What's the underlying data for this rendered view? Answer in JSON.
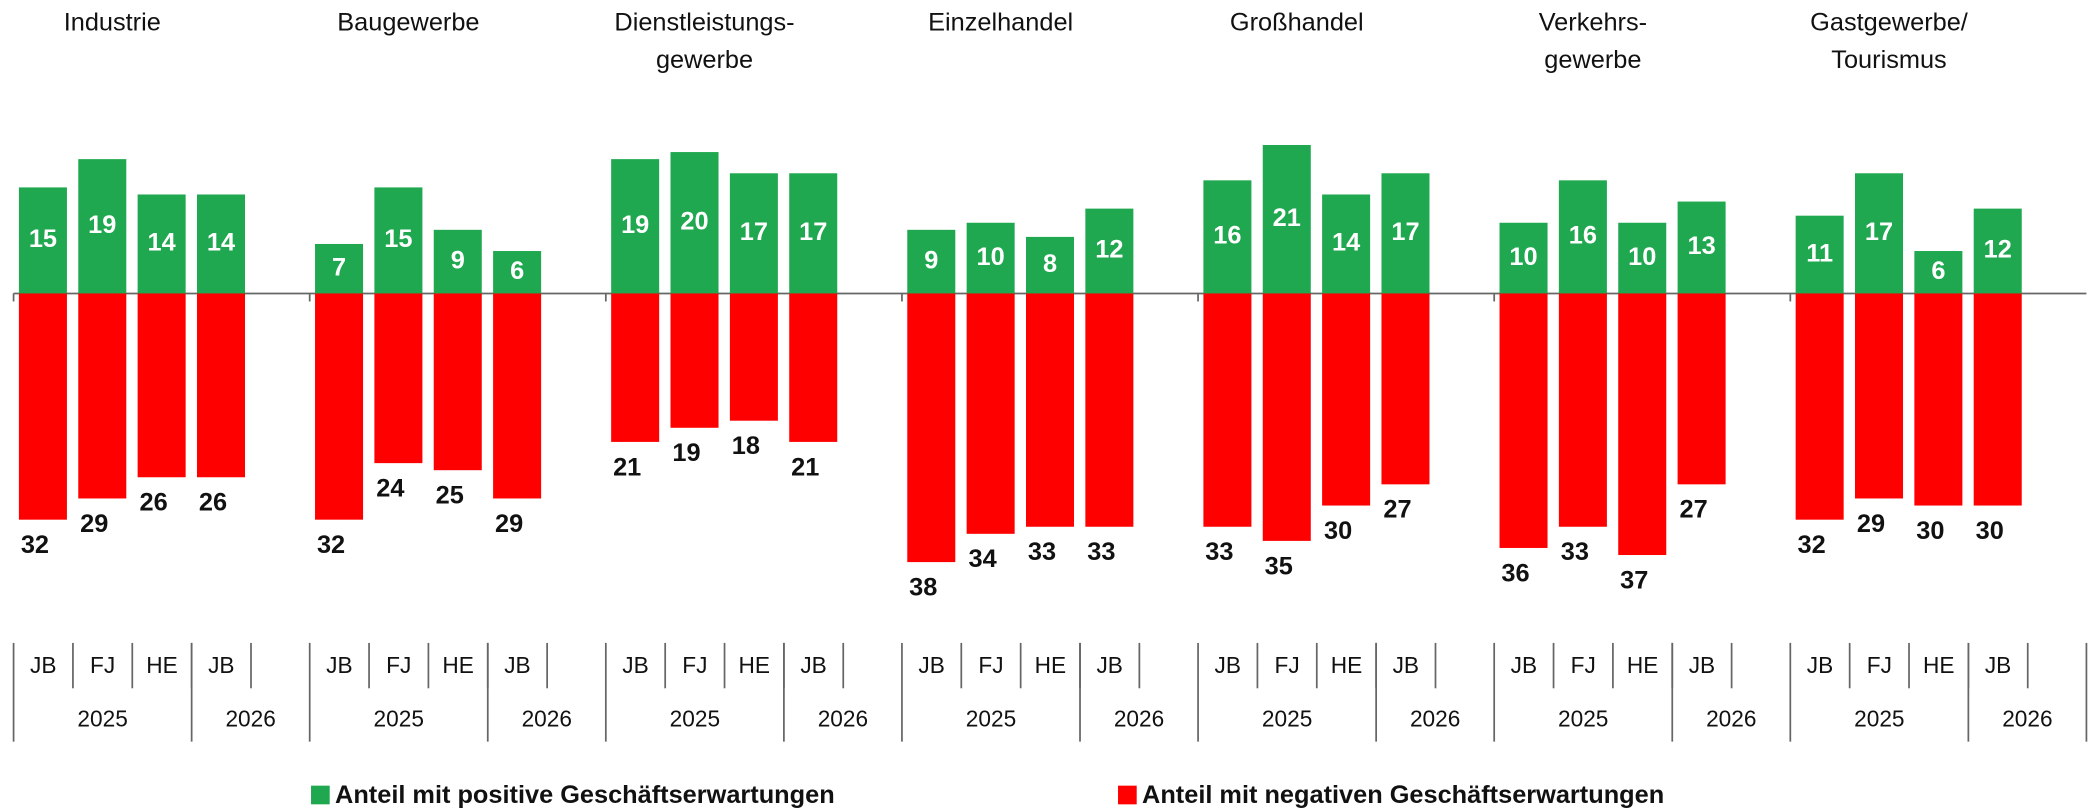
{
  "chart_data": {
    "type": "bar",
    "categories": [
      [
        "Industrie"
      ],
      [
        "Baugewerbe"
      ],
      [
        "Dienstleistungs-",
        "gewerbe"
      ],
      [
        "Einzelhandel"
      ],
      [
        "Großhandel"
      ],
      [
        "Verkehrs-",
        "gewerbe"
      ],
      [
        "Gastgewerbe/",
        "Tourismus"
      ]
    ],
    "period_groups": [
      {
        "year": "2025",
        "periods": [
          "JB",
          "FJ",
          "HE"
        ]
      },
      {
        "year": "2026",
        "periods": [
          "JB"
        ]
      }
    ],
    "series": [
      {
        "name": "Anteil mit positive Geschäftserwartungen",
        "color": "#1fa84f",
        "direction": "up",
        "values": [
          [
            15,
            19,
            14,
            14
          ],
          [
            7,
            15,
            9,
            6
          ],
          [
            19,
            20,
            17,
            17
          ],
          [
            9,
            10,
            8,
            12
          ],
          [
            16,
            21,
            14,
            17
          ],
          [
            10,
            16,
            10,
            13
          ],
          [
            11,
            17,
            6,
            12
          ]
        ]
      },
      {
        "name": "Anteil mit negativen Geschäftserwartungen",
        "color": "#ff0000",
        "direction": "down",
        "values": [
          [
            32,
            29,
            26,
            26
          ],
          [
            32,
            24,
            25,
            29
          ],
          [
            21,
            19,
            18,
            21
          ],
          [
            38,
            34,
            33,
            33
          ],
          [
            33,
            35,
            30,
            27
          ],
          [
            36,
            33,
            37,
            27
          ],
          [
            32,
            29,
            30,
            30
          ]
        ]
      }
    ]
  }
}
